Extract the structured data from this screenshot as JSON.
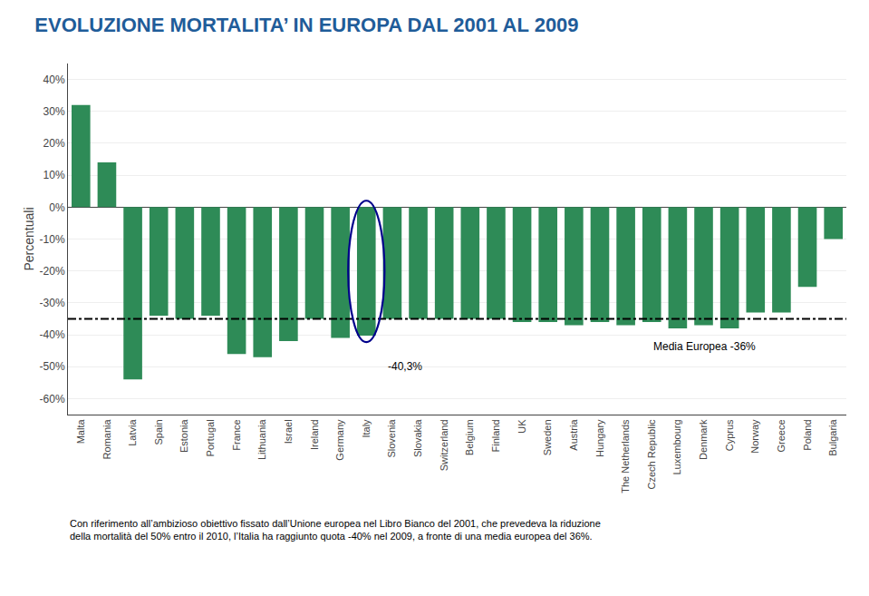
{
  "chart_data": {
    "type": "bar",
    "title": "EVOLUZIONE MORTALITA’ IN EUROPA DAL 2001 AL 2009",
    "ylabel": "Percentuali",
    "categories": [
      "Malta",
      "Romania",
      "Latvia",
      "Spain",
      "Estonia",
      "Portugal",
      "France",
      "Lithuania",
      "Israel",
      "Ireland",
      "Germany",
      "Italy",
      "Slovenia",
      "Slovakia",
      "Switzerland",
      "Belgium",
      "Finland",
      "UK",
      "Sweden",
      "Austria",
      "Hungary",
      "The Netherlands",
      "Czech Republic",
      "Luxembourg",
      "Denmark",
      "Cyprus",
      "Norway",
      "Greece",
      "Poland",
      "Bulgaria"
    ],
    "values": [
      32,
      14,
      -54,
      -34,
      -35,
      -34,
      -46,
      -47,
      -42,
      -35,
      -41,
      -40.3,
      -35,
      -35,
      -35,
      -35,
      -35,
      -36,
      -36,
      -37,
      -36,
      -37,
      -36,
      -38,
      -37,
      -38,
      -33,
      -33,
      -25,
      -10
    ],
    "color": "#2E8B57",
    "ylim": [
      -65,
      45
    ],
    "yticks": [
      {
        "value": -60,
        "label": "-60%"
      },
      {
        "value": -50,
        "label": "-50%"
      },
      {
        "value": -40,
        "label": "-40%"
      },
      {
        "value": -30,
        "label": "-30%"
      },
      {
        "value": -20,
        "label": "-20%"
      },
      {
        "value": -10,
        "label": "-10%"
      },
      {
        "value": 0,
        "label": "0%"
      },
      {
        "value": 10,
        "label": "10%"
      },
      {
        "value": 20,
        "label": "20%"
      },
      {
        "value": 30,
        "label": "30%"
      },
      {
        "value": 40,
        "label": "40%"
      }
    ],
    "grid": true,
    "reference_line": {
      "value": -35,
      "color": "black",
      "line_style": "dashdot"
    },
    "annotations": [
      {
        "text": "-40,3%",
        "category": "Italy",
        "y": -50,
        "highlight": true
      },
      {
        "text": "Media Europea -36%",
        "category": "Czech Republic",
        "y": -41
      }
    ],
    "footnote": [
      "Con riferimento all’ambizioso obiettivo fissato dall’Unione europea nel Libro Bianco del 2001, che prevedeva la riduzione",
      "della mortalità del 50% entro il 2010, l’Italia ha raggiunto quota -40% nel 2009, a fronte di una media europea del 36%."
    ]
  }
}
